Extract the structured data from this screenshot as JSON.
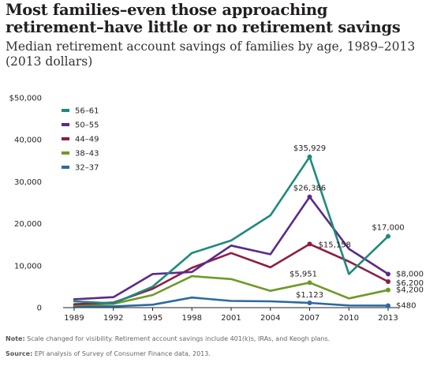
{
  "header": {
    "title": "Most families–even those approaching retirement–have little or no retirement savings",
    "subtitle": "Median retirement account savings of families by age, 1989–2013 (2013 dollars)"
  },
  "footer": {
    "note_label": "Note:",
    "note_text": " Scale changed for visibility. Retirement account savings include 401(k)s, IRAs, and Keogh plans.",
    "source_label": "Source:",
    "source_text": " EPI analysis of  Survey of Consumer Finance data, 2013."
  },
  "chart_data": {
    "type": "line",
    "x": [
      1989,
      1992,
      1995,
      1998,
      2001,
      2004,
      2007,
      2010,
      2013
    ],
    "x_tick_labels": [
      "1989",
      "1992",
      "1995",
      "1998",
      "2001",
      "2004",
      "2007",
      "2010",
      "2013"
    ],
    "ylim": [
      0,
      50000
    ],
    "y_ticks": [
      0,
      10000,
      20000,
      30000,
      40000,
      50000
    ],
    "y_tick_labels": [
      "0",
      "10,000",
      "20,000",
      "30,000",
      "40,000",
      "$50,000"
    ],
    "grid": false,
    "legend_position": "top-left",
    "series": [
      {
        "name": "56–61",
        "color": "#1f8a7c",
        "values": [
          1500,
          1000,
          5000,
          13000,
          16000,
          22000,
          35929,
          8000,
          17000
        ]
      },
      {
        "name": "50–55",
        "color": "#5b2a8c",
        "values": [
          2000,
          2500,
          8000,
          8500,
          14800,
          12700,
          26386,
          14000,
          8000
        ]
      },
      {
        "name": "44–49",
        "color": "#8c1e45",
        "values": [
          800,
          1200,
          4500,
          9500,
          13000,
          9600,
          15158,
          11000,
          6200
        ]
      },
      {
        "name": "38–43",
        "color": "#6e9a26",
        "values": [
          600,
          900,
          3000,
          7500,
          6800,
          4000,
          5951,
          2200,
          4200
        ]
      },
      {
        "name": "32–37",
        "color": "#2b6a9e",
        "values": [
          300,
          300,
          700,
          2400,
          1600,
          1500,
          1123,
          500,
          480
        ]
      }
    ],
    "annotations": [
      {
        "series": "56–61",
        "x": 2007,
        "y": 35929,
        "text": "$35,929"
      },
      {
        "series": "50–55",
        "x": 2007,
        "y": 26386,
        "text": "$26,386"
      },
      {
        "series": "44–49",
        "x": 2007,
        "y": 15158,
        "text": "$15,158"
      },
      {
        "series": "38–43",
        "x": 2007,
        "y": 5951,
        "text": "$5,951"
      },
      {
        "series": "32–37",
        "x": 2007,
        "y": 1123,
        "text": "$1,123"
      },
      {
        "series": "56–61",
        "x": 2013,
        "y": 17000,
        "text": "$17,000"
      },
      {
        "series": "50–55",
        "x": 2013,
        "y": 8000,
        "text": "$8,000"
      },
      {
        "series": "44–49",
        "x": 2013,
        "y": 6200,
        "text": "$6,200"
      },
      {
        "series": "38–43",
        "x": 2013,
        "y": 4200,
        "text": "$4,200"
      },
      {
        "series": "32–37",
        "x": 2013,
        "y": 480,
        "text": "$480"
      }
    ]
  }
}
